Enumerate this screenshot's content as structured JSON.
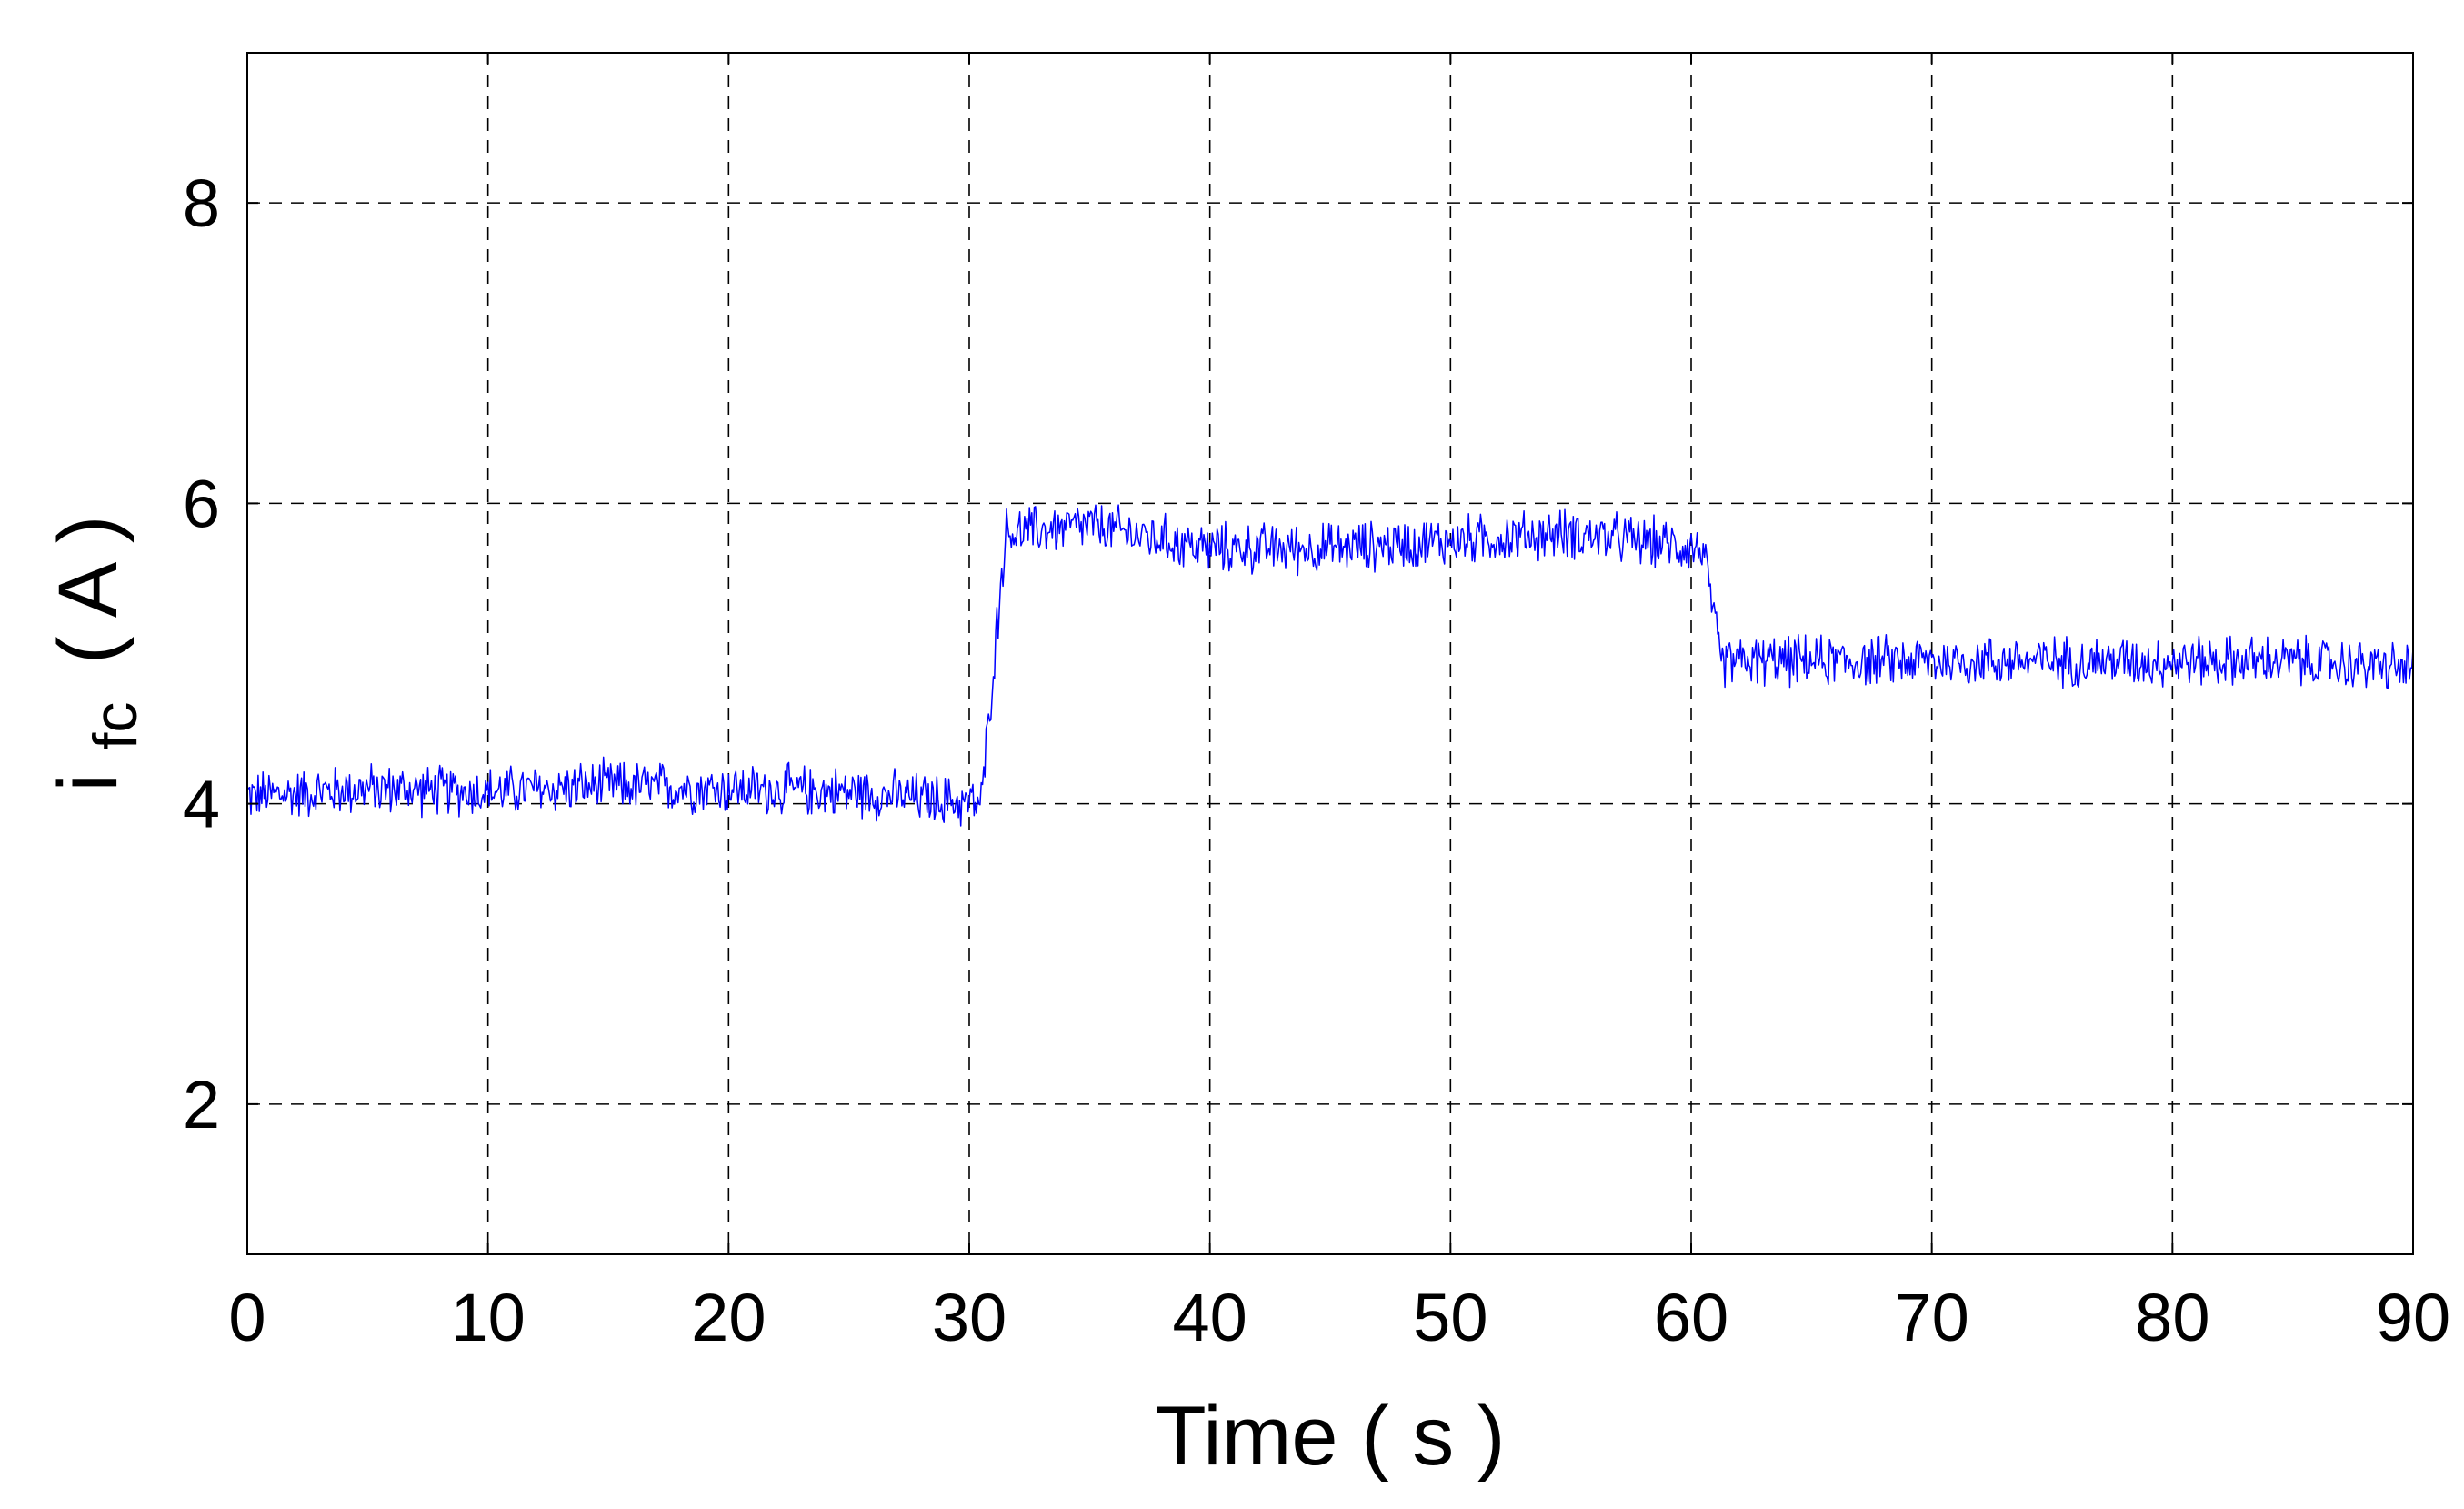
{
  "chart_data": {
    "type": "line",
    "title": "",
    "xlabel": "Time ( s )",
    "ylabel": {
      "main": "i",
      "subscript": "fc",
      "suffix": "( A )"
    },
    "xlim": [
      0,
      90
    ],
    "ylim": [
      1,
      9
    ],
    "xticks": [
      "0",
      "10",
      "20",
      "30",
      "40",
      "50",
      "60",
      "70",
      "80",
      "90"
    ],
    "yticks": [
      "2",
      "4",
      "6",
      "8"
    ],
    "grid": true,
    "grid_style": "dashed",
    "legend": "none",
    "colors": {
      "series": "#0000ff",
      "axes": "#000000",
      "grid": "#000000"
    },
    "series": [
      {
        "x": [
          0,
          5,
          10,
          15,
          20,
          25,
          30.5,
          31.5,
          35,
          40,
          45,
          50,
          55,
          60.5,
          61.2,
          65,
          70,
          75,
          80,
          85,
          90
        ],
        "y": [
          4.05,
          4.1,
          4.08,
          4.12,
          4.1,
          4.08,
          4.0,
          5.8,
          5.85,
          5.7,
          5.7,
          5.75,
          5.8,
          5.7,
          4.95,
          4.95,
          4.95,
          4.95,
          4.95,
          4.95,
          4.9
        ],
        "noise_amplitude": 0.2
      }
    ]
  }
}
